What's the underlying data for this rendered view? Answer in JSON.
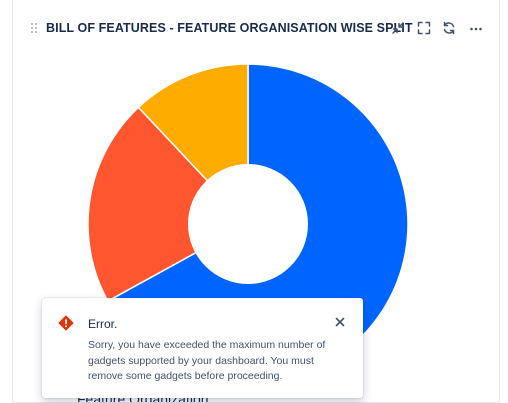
{
  "gadget": {
    "title": "BILL OF FEATURES - FEATURE ORGANISATION WISE SPLIT",
    "accent_color": "#36b37e",
    "header_icons": [
      "drag-handle-icon",
      "minimize-icon",
      "fullscreen-icon",
      "refresh-icon",
      "more-icon"
    ]
  },
  "chart_data": {
    "type": "pie",
    "donut": true,
    "values": [
      0.67,
      0.21,
      0.12
    ],
    "colors": [
      "#0065ff",
      "#ff5630",
      "#ffab00"
    ],
    "legend_caption_partial": "Feature Organization"
  },
  "toast": {
    "title": "Error.",
    "body": "Sorry, you have exceeded the maximum number of gadgets supported by your dashboard. You must remove some gadgets before proceeding.",
    "icon": "error-icon",
    "status_color": "#de350b",
    "close_icon": "close-icon"
  }
}
